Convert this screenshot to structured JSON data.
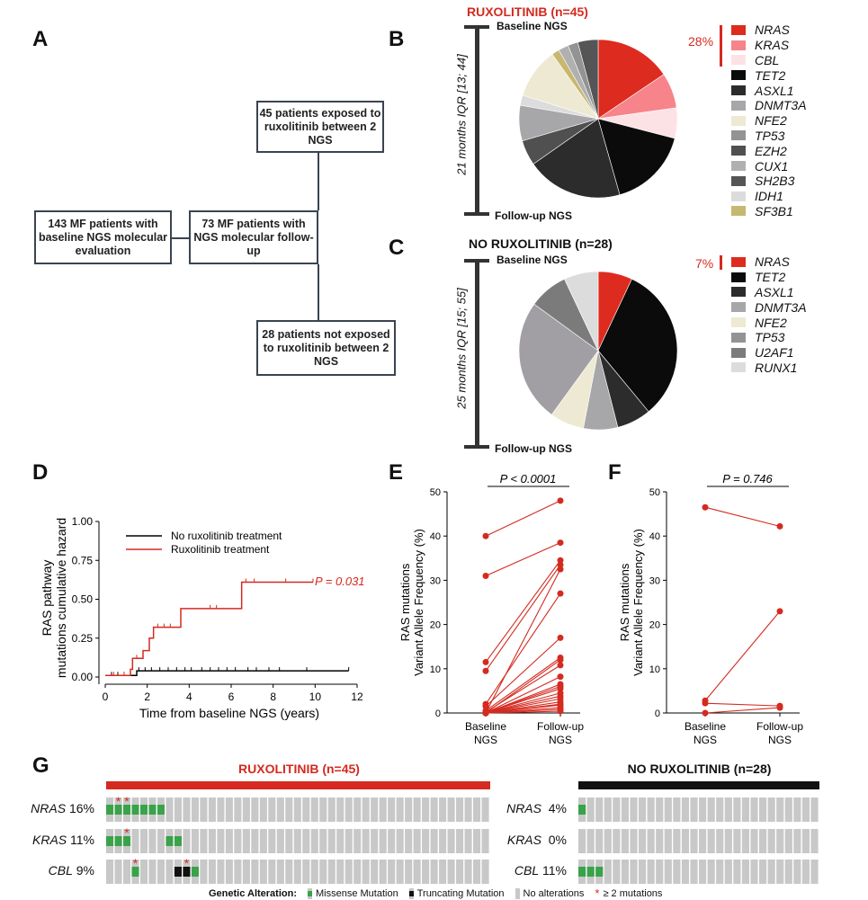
{
  "panels": {
    "A": "A",
    "B": "B",
    "C": "C",
    "D": "D",
    "E": "E",
    "F": "F",
    "G": "G"
  },
  "flowchart": {
    "box1": "45 patients exposed to ruxolitinib between 2 NGS",
    "box2": "143 MF patients with baseline NGS molecular evaluation",
    "box3": "73 MF patients with NGS molecular follow-up",
    "box4": "28 patients not exposed to ruxolitinib between 2 NGS"
  },
  "timeline_b": {
    "title": "RUXOLITINIB (n=45)",
    "top": "Baseline NGS",
    "bottom": "Follow-up NGS",
    "interval": "21 months IQR [13; 44]"
  },
  "timeline_c": {
    "title": "NO RUXOLITINIB (n=28)",
    "top": "Baseline NGS",
    "bottom": "Follow-up NGS",
    "interval": "25 months IQR [15; 55]"
  },
  "colors": {
    "accent": "#d42a20",
    "km_black": "#000000",
    "missense": "#3aa24a",
    "truncating": "#111111",
    "noalt": "#c8c8c8"
  },
  "chart_data": [
    {
      "id": "B",
      "type": "pie",
      "title": "RUXOLITINIB (n=45)",
      "ras_bracket_label": "28%",
      "slices": [
        {
          "label": "NRAS",
          "value": 15,
          "color": "#dd2b1f"
        },
        {
          "label": "KRAS",
          "value": 7,
          "color": "#f6848a"
        },
        {
          "label": "CBL",
          "value": 6,
          "color": "#fde2e5"
        },
        {
          "label": "TET2",
          "value": 16,
          "color": "#0b0b0b"
        },
        {
          "label": "ASXL1",
          "value": 19,
          "color": "#2c2c2c"
        },
        {
          "label": "EZH2",
          "value": 5,
          "color": "#505050"
        },
        {
          "label": "DNMT3A",
          "value": 7,
          "color": "#a7a6a9"
        },
        {
          "label": "IDH1",
          "value": 2,
          "color": "#dcdcdc"
        },
        {
          "label": "NFE2",
          "value": 10,
          "color": "#eee9d3"
        },
        {
          "label": "SF3B1",
          "value": 1.5,
          "color": "#c6b870"
        },
        {
          "label": "CUX1",
          "value": 2,
          "color": "#b0b0b0"
        },
        {
          "label": "TP53",
          "value": 2,
          "color": "#939393"
        },
        {
          "label": "SH2B3",
          "value": 4,
          "color": "#555555"
        }
      ],
      "legend": [
        {
          "label": "NRAS",
          "color": "#dd2b1f"
        },
        {
          "label": "KRAS",
          "color": "#f6848a"
        },
        {
          "label": "CBL",
          "color": "#fde2e5"
        },
        {
          "label": "TET2",
          "color": "#0b0b0b"
        },
        {
          "label": "ASXL1",
          "color": "#2c2c2c"
        },
        {
          "label": "DNMT3A",
          "color": "#a7a6a9"
        },
        {
          "label": "NFE2",
          "color": "#eee9d3"
        },
        {
          "label": "TP53",
          "color": "#939393"
        },
        {
          "label": "EZH2",
          "color": "#505050"
        },
        {
          "label": "CUX1",
          "color": "#b0b0b0"
        },
        {
          "label": "SH2B3",
          "color": "#555555"
        },
        {
          "label": "IDH1",
          "color": "#dcdcdc"
        },
        {
          "label": "SF3B1",
          "color": "#c6b870"
        }
      ]
    },
    {
      "id": "C",
      "type": "pie",
      "title": "NO RUXOLITINIB (n=28)",
      "ras_bracket_label": "7%",
      "slices": [
        {
          "label": "NRAS",
          "value": 7,
          "color": "#dd2b1f"
        },
        {
          "label": "TET2",
          "value": 32,
          "color": "#0b0b0b"
        },
        {
          "label": "ASXL1",
          "value": 7,
          "color": "#2c2c2c"
        },
        {
          "label": "DNMT3A",
          "value": 7,
          "color": "#a7a6a9"
        },
        {
          "label": "NFE2",
          "value": 7,
          "color": "#eee9d3"
        },
        {
          "label": "TP53",
          "value": 25,
          "color": "#a19fa3"
        },
        {
          "label": "U2AF1",
          "value": 8,
          "color": "#7b7b7b"
        },
        {
          "label": "RUNX1",
          "value": 7,
          "color": "#dcdcdc"
        }
      ],
      "legend": [
        {
          "label": "NRAS",
          "color": "#dd2b1f"
        },
        {
          "label": "TET2",
          "color": "#0b0b0b"
        },
        {
          "label": "ASXL1",
          "color": "#2c2c2c"
        },
        {
          "label": "DNMT3A",
          "color": "#a7a6a9"
        },
        {
          "label": "NFE2",
          "color": "#eee9d3"
        },
        {
          "label": "TP53",
          "color": "#939393"
        },
        {
          "label": "U2AF1",
          "color": "#7b7b7b"
        },
        {
          "label": "RUNX1",
          "color": "#dcdcdc"
        }
      ]
    },
    {
      "id": "D",
      "type": "line",
      "subtype": "step",
      "xlabel": "Time from baseline NGS (years)",
      "ylabel_line1": "RAS pathway",
      "ylabel_line2": "mutations cumulative hazard",
      "xlim": [
        0,
        12
      ],
      "ylim": [
        0,
        1
      ],
      "xticks": [
        0,
        2,
        4,
        6,
        8,
        10,
        12
      ],
      "yticks": [
        "0.00",
        "0.25",
        "0.50",
        "0.75",
        "1.00"
      ],
      "annotation": "P = 0.031",
      "series": [
        {
          "name": "No ruxolitinib treatment",
          "color": "#000000",
          "steps": [
            [
              0,
              0.01
            ],
            [
              1.5,
              0.01
            ],
            [
              1.5,
              0.04
            ],
            [
              11.6,
              0.04
            ]
          ],
          "censor": [
            0.3,
            0.6,
            0.9,
            1.2,
            1.6,
            1.9,
            2.2,
            2.6,
            3.0,
            3.4,
            3.8,
            4.1,
            4.6,
            5.0,
            5.4,
            5.8,
            6.2,
            6.8,
            7.2,
            7.8,
            8.3,
            9.6,
            11.6
          ]
        },
        {
          "name": "Ruxolitinib treatment",
          "color": "#d42a20",
          "steps": [
            [
              0,
              0.01
            ],
            [
              1.2,
              0.01
            ],
            [
              1.2,
              0.05
            ],
            [
              1.3,
              0.05
            ],
            [
              1.3,
              0.12
            ],
            [
              1.8,
              0.12
            ],
            [
              1.8,
              0.17
            ],
            [
              2.1,
              0.17
            ],
            [
              2.1,
              0.25
            ],
            [
              2.3,
              0.25
            ],
            [
              2.3,
              0.32
            ],
            [
              3.6,
              0.32
            ],
            [
              3.6,
              0.44
            ],
            [
              6.5,
              0.44
            ],
            [
              6.5,
              0.61
            ],
            [
              9.9,
              0.61
            ]
          ],
          "censor": [
            0.4,
            0.9,
            1.5,
            2.5,
            2.8,
            3.1,
            5.0,
            5.3,
            6.7,
            7.1,
            8.6,
            9.9
          ]
        }
      ]
    },
    {
      "id": "E",
      "type": "line",
      "subtype": "paired",
      "title": "P < 0.0001",
      "ylabel_line1": "RAS mutations",
      "ylabel_line2": "Variant Allele Frequency (%)",
      "ylim": [
        0,
        50
      ],
      "yticks": [
        0,
        10,
        20,
        30,
        40,
        50
      ],
      "categories": [
        "Baseline NGS",
        "Follow-up NGS"
      ],
      "pairs": [
        [
          40,
          48
        ],
        [
          31,
          38.5
        ],
        [
          11.5,
          34.5
        ],
        [
          9.5,
          33.5
        ],
        [
          2,
          27
        ],
        [
          1.5,
          17
        ],
        [
          0.5,
          12.5
        ],
        [
          0.2,
          10.8
        ],
        [
          0,
          8.2
        ],
        [
          0,
          6.5
        ],
        [
          0,
          5.5
        ],
        [
          0,
          4.5
        ],
        [
          0,
          3.8
        ],
        [
          0,
          3.2
        ],
        [
          0,
          2.5
        ],
        [
          0,
          1.8
        ],
        [
          0,
          1.2
        ],
        [
          0,
          0.8
        ],
        [
          0,
          0.4
        ],
        [
          0,
          32.5
        ],
        [
          0,
          12
        ],
        [
          0,
          6
        ],
        [
          0,
          2
        ]
      ]
    },
    {
      "id": "F",
      "type": "line",
      "subtype": "paired",
      "title": "P = 0.746",
      "ylabel_line1": "RAS mutations",
      "ylabel_line2": "Variant Allele Frequency (%)",
      "ylim": [
        0,
        50
      ],
      "yticks": [
        0,
        10,
        20,
        30,
        40,
        50
      ],
      "categories": [
        "Baseline NGS",
        "Follow-up NGS"
      ],
      "pairs": [
        [
          46.5,
          42.2
        ],
        [
          2.8,
          23
        ],
        [
          2.2,
          1.6
        ],
        [
          0,
          1.2
        ]
      ]
    },
    {
      "id": "G",
      "type": "heatmap",
      "subtype": "oncoprint",
      "groups": [
        {
          "title": "RUXOLITINIB (n=45)",
          "color": "#d42a20",
          "n": 45,
          "rows": [
            {
              "gene": "NRAS",
              "pct": "16%",
              "missense": [
                0,
                1,
                2,
                3,
                4,
                5,
                6
              ],
              "truncating": [],
              "multi": [
                1,
                2
              ]
            },
            {
              "gene": "KRAS",
              "pct": "11%",
              "missense": [
                0,
                1,
                2,
                7,
                8
              ],
              "truncating": [],
              "multi": [
                2
              ]
            },
            {
              "gene": "CBL",
              "pct": "9%",
              "missense": [
                3,
                10
              ],
              "truncating": [
                8,
                9
              ],
              "multi": [
                3,
                9
              ]
            }
          ]
        },
        {
          "title": "NO RUXOLITINIB (n=28)",
          "color": "#111111",
          "n": 28,
          "rows": [
            {
              "gene": "NRAS",
              "pct": "4%",
              "missense": [
                0
              ],
              "truncating": [],
              "multi": []
            },
            {
              "gene": "KRAS",
              "pct": "0%",
              "missense": [],
              "truncating": [],
              "multi": []
            },
            {
              "gene": "CBL",
              "pct": "11%",
              "missense": [
                0,
                1,
                2
              ],
              "truncating": [],
              "multi": []
            }
          ]
        }
      ],
      "legend": {
        "title": "Genetic Alteration:",
        "missense": "Missense Mutation",
        "truncating": "Truncating Mutation",
        "none": "No alterations",
        "multi": "≥ 2 mutations"
      }
    }
  ]
}
